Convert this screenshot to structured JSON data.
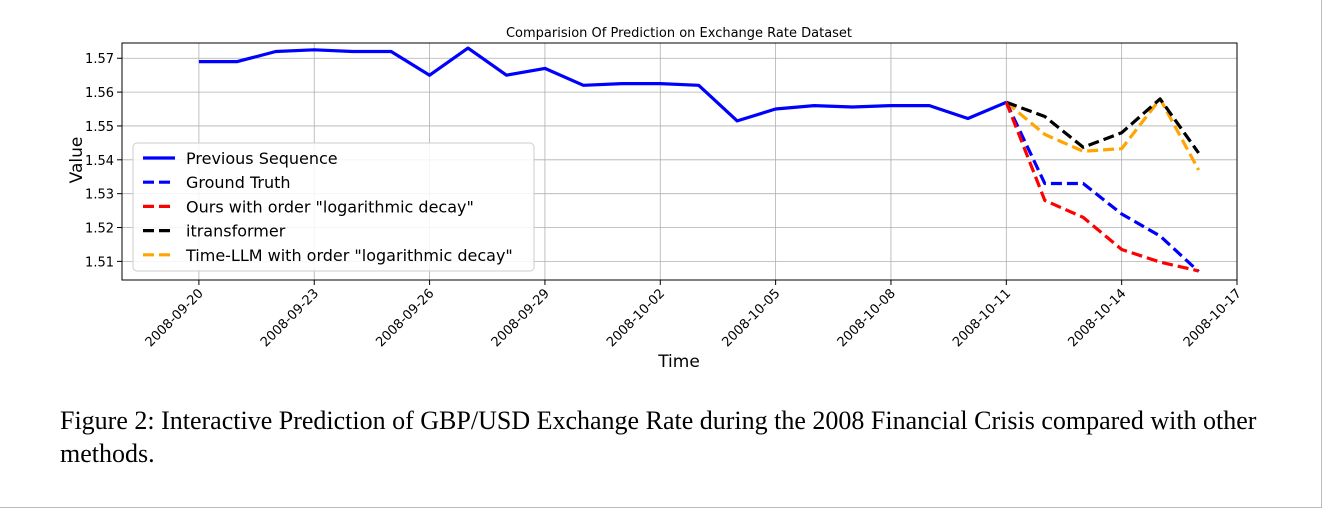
{
  "chart_data": {
    "type": "line",
    "title": "Comparision Of Prediction on Exchange Rate Dataset",
    "xlabel": "Time",
    "ylabel": "Value",
    "x_ticks": [
      "2008-09-20",
      "2008-09-23",
      "2008-09-26",
      "2008-09-29",
      "2008-10-02",
      "2008-10-05",
      "2008-10-08",
      "2008-10-11",
      "2008-10-14",
      "2008-10-17"
    ],
    "y_ticks": [
      "1.51",
      "1.52",
      "1.53",
      "1.54",
      "1.55",
      "1.56",
      "1.57"
    ],
    "xlim": [
      "2008-09-18",
      "2008-10-17"
    ],
    "ylim": [
      1.5045,
      1.5745
    ],
    "grid": true,
    "legend_position": "lower left",
    "series": [
      {
        "name": "Previous Sequence",
        "color": "#0000ff",
        "style": "solid",
        "x": [
          "2008-09-20",
          "2008-09-21",
          "2008-09-22",
          "2008-09-23",
          "2008-09-24",
          "2008-09-25",
          "2008-09-26",
          "2008-09-27",
          "2008-09-28",
          "2008-09-29",
          "2008-09-30",
          "2008-10-01",
          "2008-10-02",
          "2008-10-03",
          "2008-10-04",
          "2008-10-05",
          "2008-10-06",
          "2008-10-07",
          "2008-10-08",
          "2008-10-09",
          "2008-10-10",
          "2008-10-11"
        ],
        "y": [
          1.569,
          1.569,
          1.572,
          1.5725,
          1.572,
          1.572,
          1.565,
          1.573,
          1.565,
          1.567,
          1.562,
          1.5625,
          1.5625,
          1.562,
          1.5515,
          1.555,
          1.556,
          1.5556,
          1.556,
          1.556,
          1.5522,
          1.557
        ]
      },
      {
        "name": "Ground Truth",
        "color": "#0000ff",
        "style": "dashed",
        "x": [
          "2008-10-11",
          "2008-10-12",
          "2008-10-13",
          "2008-10-14",
          "2008-10-15",
          "2008-10-16"
        ],
        "y": [
          1.557,
          1.533,
          1.533,
          1.524,
          1.5175,
          1.507
        ]
      },
      {
        "name": "Ours with order \"logarithmic decay\"",
        "color": "#ff0000",
        "style": "dashed",
        "x": [
          "2008-10-11",
          "2008-10-12",
          "2008-10-13",
          "2008-10-14",
          "2008-10-15",
          "2008-10-16"
        ],
        "y": [
          1.557,
          1.528,
          1.523,
          1.5135,
          1.5098,
          1.5072
        ]
      },
      {
        "name": "itransformer",
        "color": "#000000",
        "style": "dashed",
        "x": [
          "2008-10-11",
          "2008-10-12",
          "2008-10-13",
          "2008-10-14",
          "2008-10-15",
          "2008-10-16"
        ],
        "y": [
          1.557,
          1.5528,
          1.5437,
          1.548,
          1.558,
          1.542
        ]
      },
      {
        "name": "Time-LLM with order \"logarithmic decay\"",
        "color": "#ffa500",
        "style": "dashed",
        "x": [
          "2008-10-11",
          "2008-10-12",
          "2008-10-13",
          "2008-10-14",
          "2008-10-15",
          "2008-10-16"
        ],
        "y": [
          1.557,
          1.5475,
          1.5425,
          1.5433,
          1.558,
          1.537
        ]
      }
    ]
  },
  "caption": "Figure 2: Interactive Prediction of GBP/USD Exchange Rate during the 2008 Financial Crisis compared with other methods."
}
